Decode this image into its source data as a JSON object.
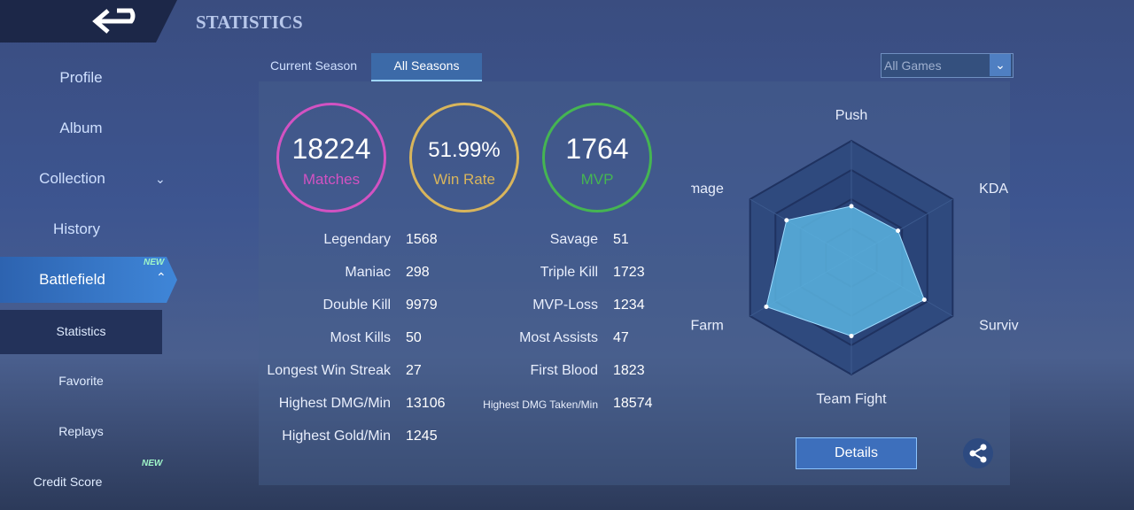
{
  "header": {
    "title": "STATISTICS"
  },
  "sidebar": {
    "items": [
      "Profile",
      "Album",
      "Collection",
      "History",
      "Battlefield",
      "Statistics",
      "Favorite",
      "Replays",
      "Credit Score"
    ],
    "badges": [
      "NEW",
      "NEW"
    ]
  },
  "tabs": [
    "Current Season",
    "All Seasons"
  ],
  "filter": "All Games",
  "summary": [
    {
      "value": 18224,
      "label": "Matches",
      "color": "#d252c2"
    },
    {
      "value": "51.99%",
      "label": "Win Rate",
      "color": "#d8b55c"
    },
    {
      "value": 1764,
      "label": "MVP",
      "color": "#45b552"
    }
  ],
  "stats": {
    "left": [
      [
        "Legendary",
        1568
      ],
      [
        "Maniac",
        298
      ],
      [
        "Double Kill",
        9979
      ],
      [
        "Most Kills",
        50
      ],
      [
        "Longest Win Streak",
        27
      ],
      [
        "Highest DMG/Min",
        13106
      ],
      [
        "Highest Gold/Min",
        1245
      ]
    ],
    "right": [
      [
        "Savage",
        51
      ],
      [
        "Triple Kill",
        1723
      ],
      [
        "MVP-Loss",
        1234
      ],
      [
        "Most Assists",
        47
      ],
      [
        "First Blood",
        1823
      ],
      [
        "Highest DMG Taken/Min",
        18574
      ]
    ]
  },
  "radar": {
    "type": "radar",
    "axes": [
      "Push",
      "KDA",
      "Survival",
      "Team Fight",
      "Farm",
      "Damage"
    ],
    "values": [
      0.44,
      0.46,
      0.72,
      0.67,
      0.84,
      0.64
    ],
    "rlim": [
      0,
      1
    ],
    "color": "#5ab4e0"
  },
  "details": "Details"
}
